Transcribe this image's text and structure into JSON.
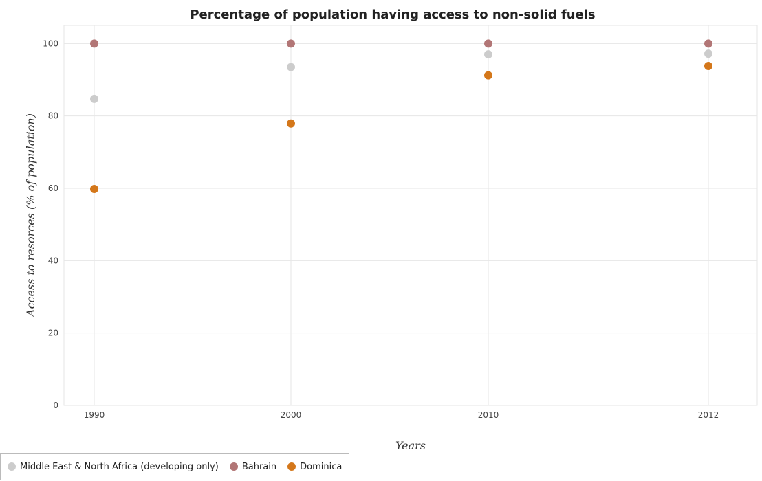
{
  "chart_data": {
    "type": "scatter",
    "title": "Percentage of population having access to non-solid fuels",
    "xlabel": "Years",
    "ylabel": "Access to resorces (% of population)",
    "categories": [
      "1990",
      "2000",
      "2010",
      "2012"
    ],
    "ylim": [
      0,
      105
    ],
    "yticks": [
      0,
      20,
      40,
      60,
      80,
      100
    ],
    "grid": true,
    "legend_position": "bottom-left",
    "series": [
      {
        "name": "Middle East & North Africa (developing only)",
        "color": "#cccccc",
        "values": [
          84.7,
          93.5,
          97.0,
          97.2
        ]
      },
      {
        "name": "Bahrain",
        "color": "#b27676",
        "values": [
          100,
          100,
          100,
          100
        ]
      },
      {
        "name": "Dominica",
        "color": "#d4771a",
        "values": [
          59.8,
          77.9,
          91.2,
          93.8
        ]
      }
    ]
  }
}
